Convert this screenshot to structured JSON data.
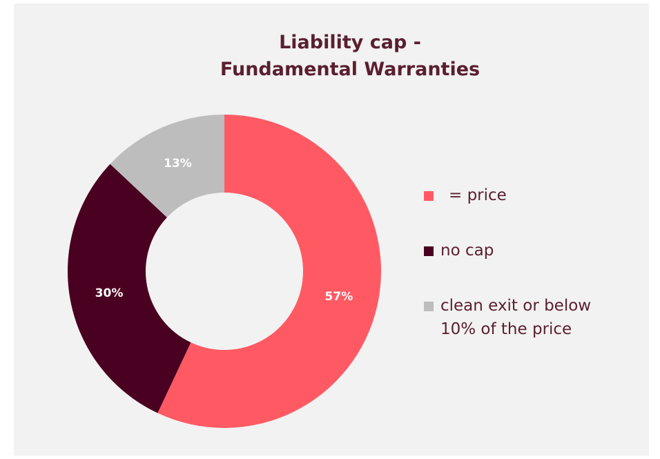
{
  "chart_data": {
    "type": "donut",
    "title": "Liability cap -\nFundamental Warranties",
    "categories": [
      "= price",
      "no cap",
      "clean exit or below 10% of the price"
    ],
    "values": [
      57,
      30,
      13
    ],
    "value_labels": [
      "57%",
      "30%",
      "13%"
    ],
    "colors": [
      "#ff5a64",
      "#4a0020",
      "#bdbdbd"
    ]
  }
}
